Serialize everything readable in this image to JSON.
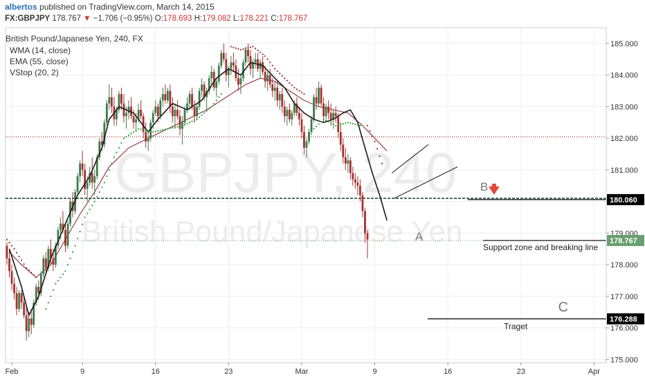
{
  "header": {
    "author": "albertos",
    "published": "published on TradingView.com, March 14, 2015",
    "symbol": "FX:GBPJPY",
    "last": "178.767",
    "arrow": "▼",
    "change": "−1.706 (−0.95%)",
    "o_label": "O:",
    "o_value": "178.693",
    "h_label": "H:",
    "h_value": "179.082",
    "l_label": "L:",
    "l_value": "178.221",
    "c_label": "C:",
    "c_value": "178.767"
  },
  "legend": {
    "title": "British Pound/Japanese Yen, 240, FX",
    "wma": "WMA (14, close)",
    "ema": "EMA (55, close)",
    "vstop": "VStop (20, 2)"
  },
  "watermark": {
    "symbol": "GBPJPY, 240",
    "name": "British Pound/Japanese Yen"
  },
  "colors": {
    "up": "#3c7a4a",
    "down": "#a5302e",
    "wma": "#1a1a1a",
    "ema": "#8f2a3a",
    "vstop_up": "#2f9e2f",
    "vstop_down": "#9b2b2b",
    "support_line": "#1d4f3c",
    "resistance_line": "#8b1a1a",
    "marker": "#e0483e"
  },
  "annotations": {
    "a": "A",
    "b": "B",
    "c": "C",
    "support_text": "Support zone and breaking line",
    "target_text": "Traget"
  },
  "chart_data": {
    "type": "candlestick",
    "symbol": "FX:GBPJPY",
    "interval": "240",
    "ylim": [
      174.9,
      185.5
    ],
    "y_ticks": [
      "185.000",
      "184.000",
      "183.000",
      "182.000",
      "181.000",
      "180.000",
      "179.000",
      "178.000",
      "177.000",
      "176.000",
      "175.000"
    ],
    "x_ticks": [
      "Feb",
      "9",
      "16",
      "23",
      "Mar",
      "9",
      "16",
      "23",
      "Apr"
    ],
    "x_tick_index": [
      2,
      31,
      61,
      91,
      121,
      151,
      181,
      211,
      241
    ],
    "price_labels": [
      {
        "value": 180.06,
        "text": "180.060",
        "color": "#000000"
      },
      {
        "value": 178.767,
        "text": "178.767",
        "color": "#67a06e"
      },
      {
        "value": 176.288,
        "text": "176.288",
        "color": "#000000"
      }
    ],
    "horizontal_levels": {
      "support": 180.1,
      "resistance": 182.05,
      "last": 178.767,
      "target": 176.288
    },
    "trendlines": [
      {
        "x1": 158,
        "y1": 180.9,
        "x2": 173,
        "y2": 181.8
      },
      {
        "x1": 159,
        "y1": 180.1,
        "x2": 185,
        "y2": 181.1
      }
    ],
    "points": {
      "A": [
        169,
        178.9
      ],
      "B": [
        196,
        180.3
      ],
      "C": [
        228,
        176.65
      ]
    },
    "candles": [
      [
        178.6,
        178.7,
        178.0,
        178.2
      ],
      [
        178.2,
        178.5,
        177.6,
        177.8
      ],
      [
        177.8,
        178.0,
        177.2,
        177.4
      ],
      [
        177.4,
        177.6,
        176.9,
        177.1
      ],
      [
        177.1,
        177.3,
        176.4,
        176.6
      ],
      [
        176.6,
        177.2,
        176.5,
        177.1
      ],
      [
        177.1,
        177.2,
        176.6,
        176.8
      ],
      [
        176.8,
        177.0,
        176.3,
        176.4
      ],
      [
        176.4,
        176.7,
        175.6,
        175.9
      ],
      [
        175.9,
        176.5,
        175.7,
        176.3
      ],
      [
        176.3,
        176.6,
        175.8,
        176.1
      ],
      [
        176.1,
        176.9,
        176.0,
        176.8
      ],
      [
        176.8,
        177.4,
        176.7,
        177.3
      ],
      [
        177.3,
        177.5,
        176.9,
        177.1
      ],
      [
        177.1,
        177.8,
        177.0,
        177.7
      ],
      [
        177.7,
        178.3,
        177.6,
        178.2
      ],
      [
        178.2,
        178.4,
        177.7,
        177.9
      ],
      [
        177.9,
        178.6,
        177.8,
        178.5
      ],
      [
        178.5,
        178.8,
        178.0,
        178.2
      ],
      [
        178.2,
        178.5,
        177.8,
        178.0
      ],
      [
        178.0,
        178.7,
        177.9,
        178.6
      ],
      [
        178.6,
        179.2,
        178.5,
        179.1
      ],
      [
        179.1,
        179.5,
        178.8,
        179.3
      ],
      [
        179.3,
        179.7,
        179.0,
        179.1
      ],
      [
        179.1,
        179.3,
        178.4,
        178.6
      ],
      [
        178.6,
        179.4,
        178.5,
        179.3
      ],
      [
        179.3,
        180.1,
        179.2,
        180.0
      ],
      [
        180.0,
        180.3,
        179.5,
        179.7
      ],
      [
        179.7,
        180.4,
        179.6,
        180.3
      ],
      [
        180.3,
        180.9,
        180.2,
        180.8
      ],
      [
        180.8,
        181.3,
        180.6,
        181.2
      ],
      [
        181.2,
        181.6,
        180.8,
        181.0
      ],
      [
        181.0,
        181.2,
        180.2,
        180.4
      ],
      [
        180.4,
        180.8,
        180.0,
        180.6
      ],
      [
        180.6,
        181.1,
        180.5,
        180.9
      ],
      [
        180.9,
        181.4,
        180.4,
        180.6
      ],
      [
        180.6,
        181.0,
        180.2,
        180.8
      ],
      [
        180.8,
        181.5,
        180.7,
        181.4
      ],
      [
        181.4,
        182.0,
        181.3,
        181.9
      ],
      [
        181.9,
        182.2,
        181.6,
        181.8
      ],
      [
        181.8,
        182.6,
        181.7,
        182.5
      ],
      [
        182.5,
        183.2,
        182.4,
        183.1
      ],
      [
        183.1,
        183.7,
        182.9,
        183.3
      ],
      [
        183.3,
        183.6,
        182.8,
        183.0
      ],
      [
        183.0,
        183.3,
        182.4,
        182.6
      ],
      [
        182.6,
        183.0,
        182.4,
        182.9
      ],
      [
        182.9,
        183.5,
        182.8,
        183.4
      ],
      [
        183.4,
        183.6,
        182.9,
        183.1
      ],
      [
        183.1,
        183.4,
        182.5,
        182.7
      ],
      [
        182.7,
        183.0,
        182.3,
        182.8
      ],
      [
        182.8,
        183.2,
        182.6,
        183.0
      ],
      [
        183.0,
        183.3,
        182.6,
        182.7
      ],
      [
        182.7,
        182.9,
        182.3,
        182.5
      ],
      [
        182.5,
        182.8,
        182.2,
        182.6
      ],
      [
        182.6,
        183.1,
        182.5,
        182.9
      ],
      [
        182.9,
        183.2,
        182.6,
        182.7
      ],
      [
        182.7,
        182.8,
        182.0,
        182.2
      ],
      [
        182.2,
        182.5,
        181.7,
        181.9
      ],
      [
        181.9,
        182.2,
        181.6,
        182.0
      ],
      [
        182.0,
        182.6,
        181.9,
        182.5
      ],
      [
        182.5,
        182.9,
        182.3,
        182.8
      ],
      [
        182.8,
        183.2,
        182.7,
        183.0
      ],
      [
        183.0,
        183.1,
        182.5,
        182.7
      ],
      [
        182.7,
        183.3,
        182.6,
        183.2
      ],
      [
        183.2,
        183.6,
        183.0,
        183.4
      ],
      [
        183.4,
        183.7,
        183.1,
        183.2
      ],
      [
        183.2,
        183.6,
        183.1,
        183.5
      ],
      [
        183.5,
        183.7,
        182.8,
        183.0
      ],
      [
        183.0,
        183.3,
        182.5,
        182.7
      ],
      [
        182.7,
        183.1,
        182.3,
        182.9
      ],
      [
        182.9,
        183.2,
        182.6,
        182.7
      ],
      [
        182.7,
        182.9,
        182.1,
        182.3
      ],
      [
        182.3,
        182.7,
        181.8,
        182.5
      ],
      [
        182.5,
        183.0,
        182.4,
        182.9
      ],
      [
        182.9,
        183.3,
        182.8,
        183.1
      ],
      [
        183.1,
        183.5,
        182.9,
        183.4
      ],
      [
        183.4,
        183.6,
        182.9,
        183.0
      ],
      [
        183.0,
        183.2,
        182.5,
        182.7
      ],
      [
        182.7,
        183.1,
        182.6,
        183.0
      ],
      [
        183.0,
        183.6,
        182.9,
        183.5
      ],
      [
        183.5,
        183.9,
        183.3,
        183.7
      ],
      [
        183.7,
        183.8,
        183.2,
        183.3
      ],
      [
        183.3,
        183.6,
        182.9,
        183.5
      ],
      [
        183.5,
        184.0,
        183.4,
        183.9
      ],
      [
        183.9,
        184.3,
        183.7,
        184.1
      ],
      [
        184.1,
        184.2,
        183.5,
        183.6
      ],
      [
        183.6,
        183.9,
        183.3,
        183.8
      ],
      [
        183.8,
        184.4,
        183.7,
        184.3
      ],
      [
        184.3,
        184.8,
        184.2,
        184.7
      ],
      [
        184.7,
        185.0,
        184.4,
        184.5
      ],
      [
        184.5,
        184.7,
        183.8,
        184.0
      ],
      [
        184.0,
        184.3,
        183.6,
        184.2
      ],
      [
        184.2,
        184.6,
        184.0,
        184.4
      ],
      [
        184.4,
        184.7,
        184.1,
        184.3
      ],
      [
        184.3,
        184.5,
        183.8,
        183.9
      ],
      [
        183.9,
        184.2,
        183.5,
        183.7
      ],
      [
        183.7,
        184.0,
        183.4,
        183.9
      ],
      [
        183.9,
        184.5,
        183.8,
        184.4
      ],
      [
        184.4,
        184.9,
        184.3,
        184.8
      ],
      [
        184.8,
        185.0,
        184.4,
        184.6
      ],
      [
        184.6,
        184.8,
        184.0,
        184.2
      ],
      [
        184.2,
        184.5,
        183.9,
        184.4
      ],
      [
        184.4,
        184.7,
        184.2,
        184.5
      ],
      [
        184.5,
        184.7,
        184.1,
        184.2
      ],
      [
        184.2,
        184.5,
        183.9,
        184.4
      ],
      [
        184.4,
        184.6,
        184.0,
        184.1
      ],
      [
        184.1,
        184.3,
        183.6,
        183.8
      ],
      [
        183.8,
        184.1,
        183.5,
        184.0
      ],
      [
        184.0,
        184.2,
        183.6,
        183.7
      ],
      [
        183.7,
        183.9,
        183.3,
        183.5
      ],
      [
        183.5,
        183.8,
        183.2,
        183.6
      ],
      [
        183.6,
        183.8,
        183.0,
        183.2
      ],
      [
        183.2,
        183.5,
        182.9,
        183.4
      ],
      [
        183.4,
        183.6,
        182.8,
        183.0
      ],
      [
        183.0,
        183.2,
        182.5,
        182.7
      ],
      [
        182.7,
        183.0,
        182.4,
        182.9
      ],
      [
        182.9,
        183.1,
        182.5,
        182.6
      ],
      [
        182.6,
        182.9,
        182.4,
        182.8
      ],
      [
        182.8,
        183.2,
        182.7,
        183.1
      ],
      [
        183.1,
        183.3,
        182.7,
        182.8
      ],
      [
        182.8,
        183.0,
        182.4,
        182.6
      ],
      [
        182.6,
        182.8,
        182.0,
        182.2
      ],
      [
        182.2,
        182.4,
        181.5,
        181.7
      ],
      [
        181.7,
        182.0,
        181.4,
        181.9
      ],
      [
        181.9,
        182.3,
        181.8,
        182.2
      ],
      [
        182.2,
        182.7,
        182.1,
        182.6
      ],
      [
        182.6,
        183.4,
        182.5,
        183.3
      ],
      [
        183.3,
        183.6,
        182.9,
        183.1
      ],
      [
        183.1,
        183.8,
        183.0,
        183.6
      ],
      [
        183.6,
        183.7,
        183.0,
        183.1
      ],
      [
        183.1,
        183.3,
        182.5,
        182.7
      ],
      [
        182.7,
        183.1,
        182.6,
        183.0
      ],
      [
        183.0,
        183.2,
        182.6,
        182.8
      ],
      [
        182.8,
        183.1,
        182.4,
        182.6
      ],
      [
        182.6,
        182.9,
        182.3,
        182.8
      ],
      [
        182.8,
        183.0,
        182.5,
        182.7
      ],
      [
        182.7,
        182.8,
        182.0,
        182.2
      ],
      [
        182.2,
        182.5,
        181.6,
        181.8
      ],
      [
        181.8,
        182.0,
        181.2,
        181.4
      ],
      [
        181.4,
        181.7,
        181.0,
        181.2
      ],
      [
        181.2,
        181.5,
        180.9,
        181.3
      ],
      [
        181.3,
        181.4,
        180.7,
        180.9
      ],
      [
        180.9,
        181.1,
        180.5,
        180.7
      ],
      [
        180.7,
        180.9,
        180.4,
        180.6
      ],
      [
        180.6,
        180.8,
        180.2,
        180.5
      ],
      [
        180.5,
        180.7,
        180.0,
        180.2
      ],
      [
        180.2,
        180.3,
        179.5,
        179.7
      ],
      [
        179.7,
        179.8,
        178.7,
        179.0
      ],
      [
        179.0,
        179.1,
        178.2,
        178.8
      ]
    ],
    "wma": [
      [
        1,
        178.5
      ],
      [
        6,
        177.3
      ],
      [
        9,
        176.4
      ],
      [
        13,
        177.0
      ],
      [
        18,
        178.2
      ],
      [
        24,
        179.3
      ],
      [
        29,
        180.2
      ],
      [
        34,
        180.8
      ],
      [
        39,
        181.7
      ],
      [
        42,
        182.6
      ],
      [
        46,
        183.0
      ],
      [
        52,
        182.8
      ],
      [
        58,
        182.2
      ],
      [
        62,
        182.6
      ],
      [
        68,
        183.1
      ],
      [
        74,
        182.9
      ],
      [
        80,
        183.2
      ],
      [
        86,
        183.9
      ],
      [
        91,
        184.2
      ],
      [
        96,
        184.0
      ],
      [
        100,
        184.4
      ],
      [
        105,
        184.3
      ],
      [
        110,
        183.9
      ],
      [
        114,
        183.6
      ],
      [
        118,
        183.1
      ],
      [
        122,
        182.8
      ],
      [
        126,
        182.6
      ],
      [
        130,
        182.5
      ],
      [
        134,
        182.6
      ],
      [
        138,
        182.8
      ],
      [
        141,
        182.9
      ],
      [
        144,
        182.5
      ],
      [
        147,
        181.7
      ],
      [
        150,
        180.9
      ],
      [
        153,
        180.2
      ],
      [
        156,
        179.4
      ]
    ],
    "ema": [
      [
        1,
        178.4
      ],
      [
        6,
        178.0
      ],
      [
        12,
        177.6
      ],
      [
        18,
        178.0
      ],
      [
        24,
        178.8
      ],
      [
        30,
        179.6
      ],
      [
        36,
        180.3
      ],
      [
        42,
        181.1
      ],
      [
        50,
        181.7
      ],
      [
        58,
        182.0
      ],
      [
        66,
        182.3
      ],
      [
        74,
        182.6
      ],
      [
        82,
        182.9
      ],
      [
        90,
        183.3
      ],
      [
        98,
        183.7
      ],
      [
        104,
        183.9
      ],
      [
        110,
        183.8
      ],
      [
        116,
        183.5
      ],
      [
        122,
        183.2
      ],
      [
        128,
        183.0
      ],
      [
        134,
        182.9
      ],
      [
        140,
        182.8
      ],
      [
        146,
        182.4
      ],
      [
        151,
        182.0
      ],
      [
        156,
        181.6
      ]
    ],
    "vstop_down": [
      [
        0,
        178.8
      ],
      [
        3,
        178.5
      ],
      [
        8,
        177.9
      ],
      [
        12,
        177.6
      ],
      [
        92,
        184.9
      ],
      [
        96,
        184.8
      ],
      [
        101,
        184.9
      ],
      [
        106,
        184.6
      ],
      [
        110,
        184.2
      ],
      [
        114,
        183.9
      ],
      [
        118,
        183.6
      ],
      [
        122,
        183.4
      ],
      [
        148,
        182.4
      ],
      [
        151,
        181.9
      ],
      [
        154,
        181.2
      ]
    ],
    "vstop_up": [
      [
        16,
        176.6
      ],
      [
        20,
        177.4
      ],
      [
        24,
        177.8
      ],
      [
        28,
        178.6
      ],
      [
        32,
        179.5
      ],
      [
        36,
        180.0
      ],
      [
        40,
        180.6
      ],
      [
        44,
        181.4
      ],
      [
        48,
        182.0
      ],
      [
        54,
        182.3
      ],
      [
        60,
        182.2
      ],
      [
        66,
        182.3
      ],
      [
        72,
        182.4
      ],
      [
        78,
        182.6
      ],
      [
        84,
        183.0
      ],
      [
        88,
        183.4
      ],
      [
        126,
        182.3
      ],
      [
        130,
        182.6
      ],
      [
        135,
        182.4
      ],
      [
        140,
        182.5
      ],
      [
        145,
        182.4
      ]
    ]
  }
}
